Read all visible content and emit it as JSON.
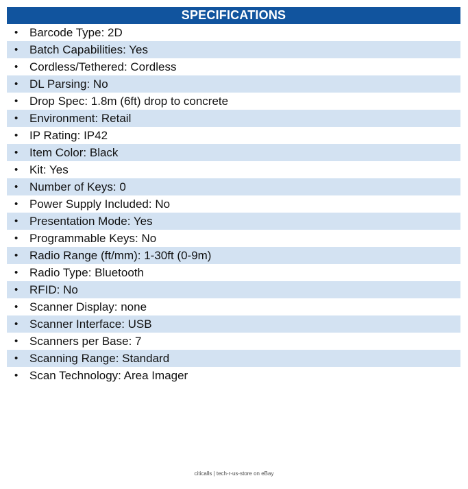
{
  "header": {
    "title": "SPECIFICATIONS",
    "background": "#11549e",
    "text_color": "#ffffff"
  },
  "specs": {
    "bullet_char": "•",
    "row_base_color": "#ffffff",
    "row_alt_color": "#d3e2f2",
    "items": [
      {
        "name": "Barcode Type",
        "value": "2D"
      },
      {
        "name": "Batch Capabilities",
        "value": "Yes"
      },
      {
        "name": "Cordless/Tethered",
        "value": "Cordless"
      },
      {
        "name": "DL Parsing",
        "value": "No"
      },
      {
        "name": "Drop Spec",
        "value": "1.8m (6ft) drop to concrete"
      },
      {
        "name": "Environment",
        "value": "Retail"
      },
      {
        "name": "IP Rating",
        "value": "IP42"
      },
      {
        "name": "Item Color",
        "value": "Black"
      },
      {
        "name": "Kit",
        "value": "Yes"
      },
      {
        "name": "Number of Keys",
        "value": "0"
      },
      {
        "name": "Power Supply Included",
        "value": "No"
      },
      {
        "name": "Presentation Mode",
        "value": "Yes"
      },
      {
        "name": "Programmable Keys",
        "value": "No"
      },
      {
        "name": "Radio Range (ft/mm)",
        "value": "1-30ft (0-9m)"
      },
      {
        "name": "Radio Type",
        "value": "Bluetooth"
      },
      {
        "name": "RFID",
        "value": "No"
      },
      {
        "name": "Scanner Display",
        "value": "none"
      },
      {
        "name": "Scanner Interface",
        "value": "USB"
      },
      {
        "name": "Scanners per Base",
        "value": "7"
      },
      {
        "name": "Scanning Range",
        "value": "Standard"
      },
      {
        "name": "Scan Technology",
        "value": "Area Imager"
      }
    ]
  },
  "footer": {
    "text": "citicalls | tech-r-us-store on eBay",
    "text_color": "#4d4d4d"
  }
}
